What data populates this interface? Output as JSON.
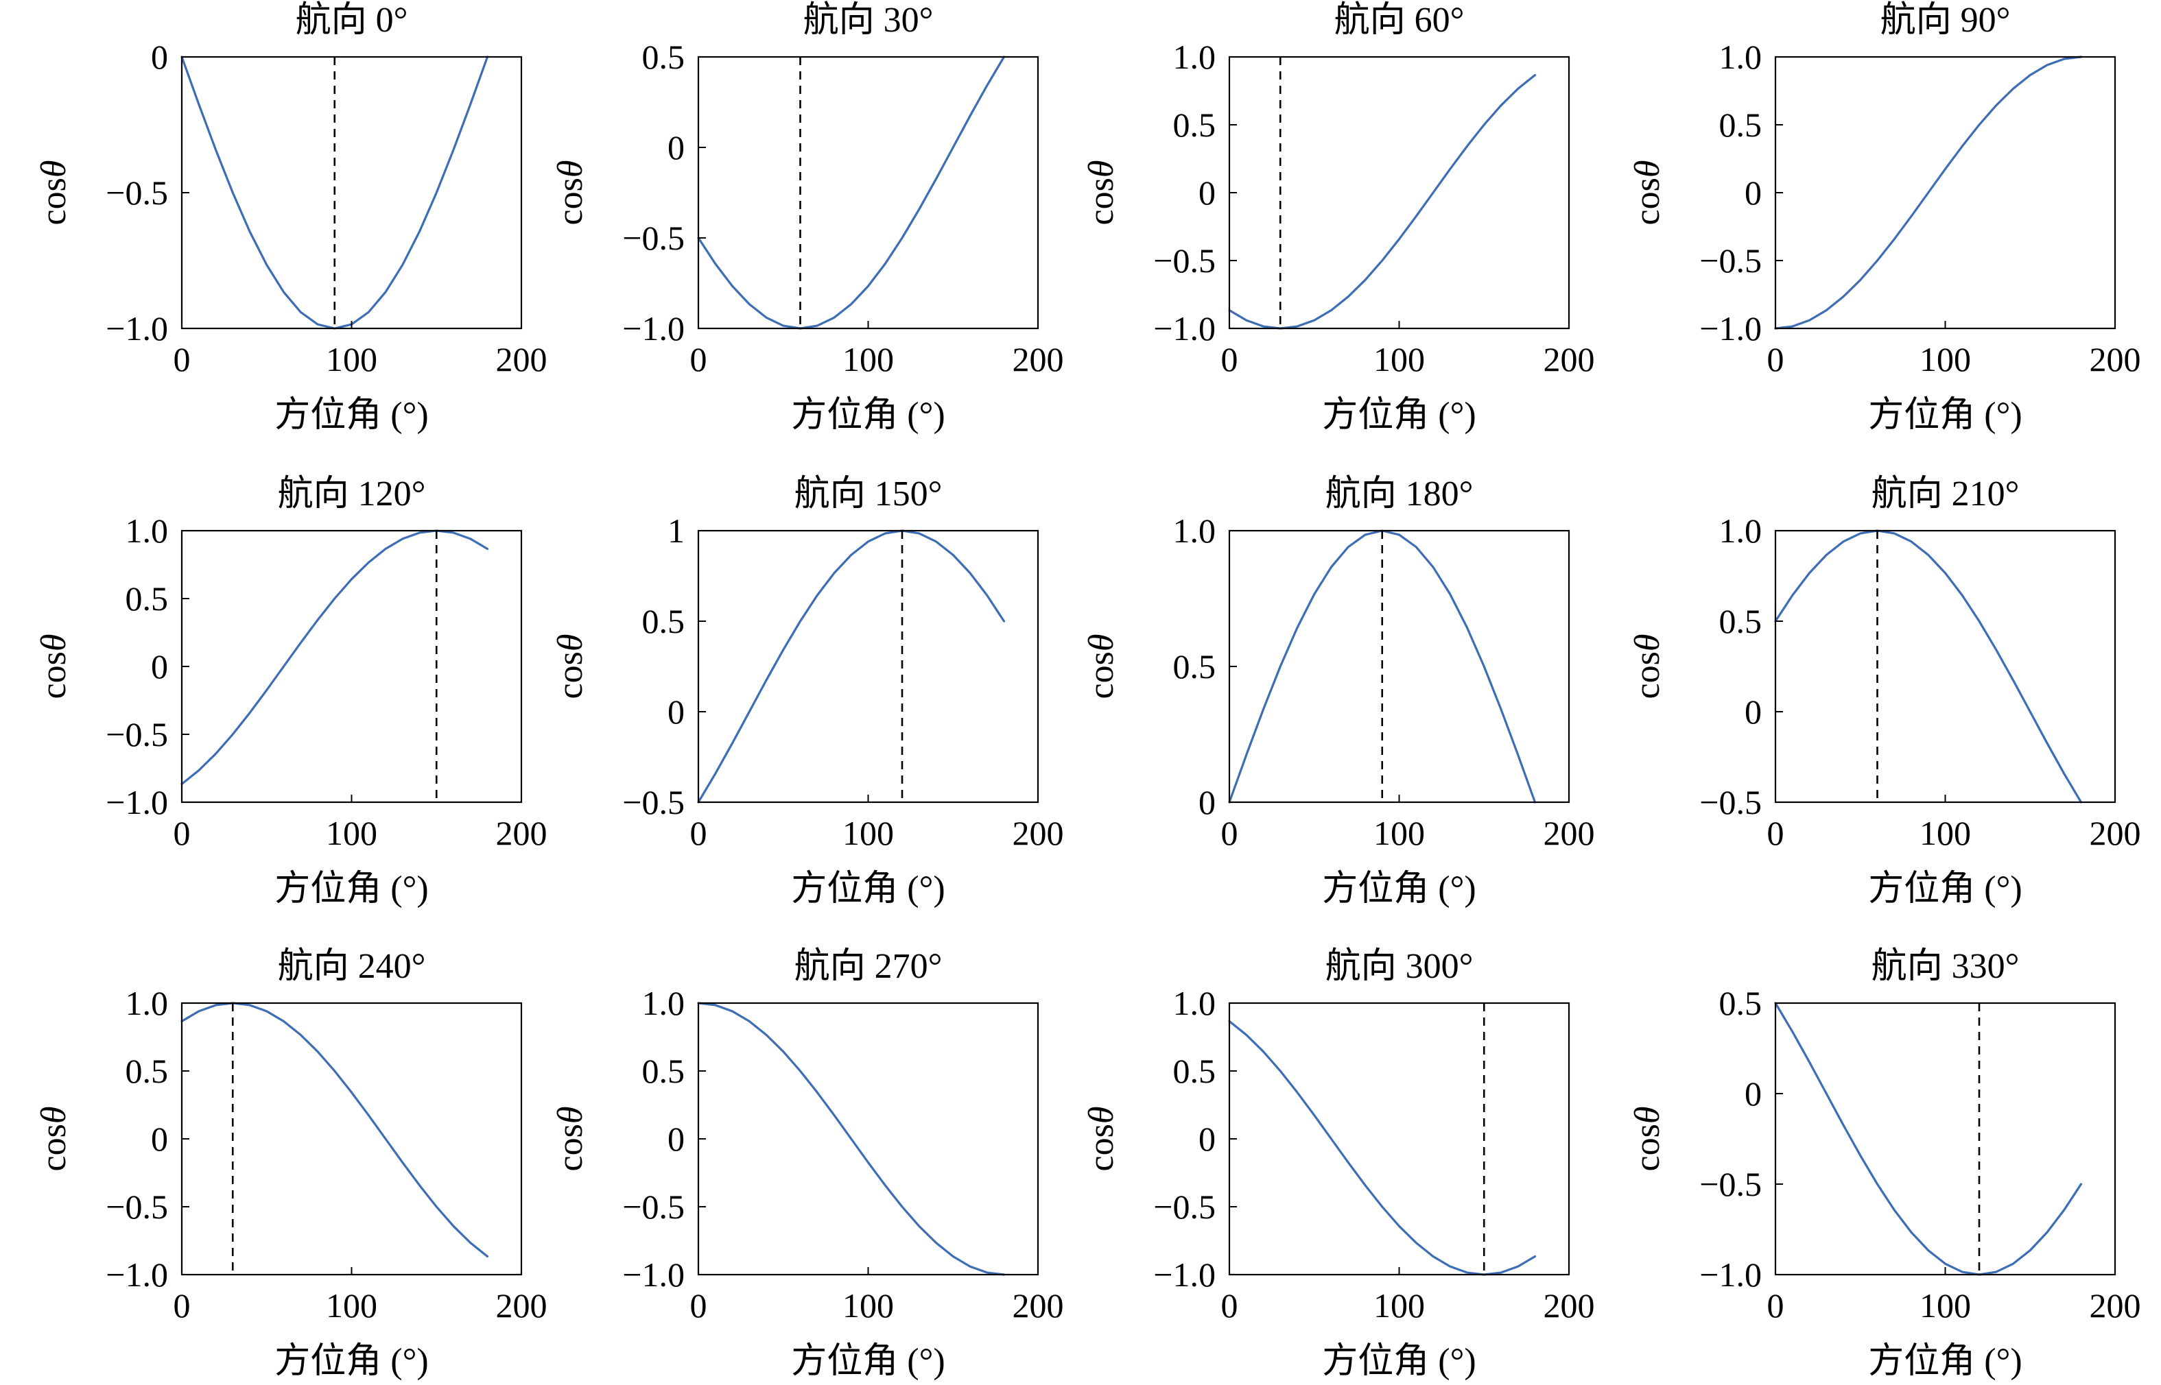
{
  "style": {
    "line_color": "#3d6db5",
    "reference_line_color": "#000000"
  },
  "chart_data": [
    {
      "type": "line",
      "title": "航向 0°",
      "xlabel": "方位角 (°)",
      "ylabel": "cosθ",
      "xlim": [
        0,
        200
      ],
      "xticks": [
        0,
        100,
        200
      ],
      "xtick_labels": [
        "0",
        "100",
        "200"
      ],
      "ylim": [
        -1,
        0
      ],
      "yticks": [
        -1,
        -0.5,
        0
      ],
      "ytick_labels": [
        "−1.0",
        "−0.5",
        "0"
      ],
      "vline": 90,
      "series": [
        {
          "x": [
            0,
            10,
            20,
            30,
            40,
            50,
            60,
            70,
            80,
            90,
            100,
            110,
            120,
            130,
            140,
            150,
            160,
            170,
            180
          ],
          "y": [
            0,
            -0.174,
            -0.342,
            -0.5,
            -0.643,
            -0.766,
            -0.866,
            -0.94,
            -0.985,
            -1,
            -0.985,
            -0.94,
            -0.866,
            -0.766,
            -0.643,
            -0.5,
            -0.342,
            -0.174,
            0
          ]
        }
      ]
    },
    {
      "type": "line",
      "title": "航向 30°",
      "xlabel": "方位角 (°)",
      "ylabel": "cosθ",
      "xlim": [
        0,
        200
      ],
      "xticks": [
        0,
        100,
        200
      ],
      "xtick_labels": [
        "0",
        "100",
        "200"
      ],
      "ylim": [
        -1,
        0.5
      ],
      "yticks": [
        -1,
        -0.5,
        0,
        0.5
      ],
      "ytick_labels": [
        "−1.0",
        "−0.5",
        "0",
        "0.5"
      ],
      "vline": 60,
      "series": [
        {
          "x": [
            0,
            10,
            20,
            30,
            40,
            50,
            60,
            70,
            80,
            90,
            100,
            110,
            120,
            130,
            140,
            150,
            160,
            170,
            180
          ],
          "y": [
            -0.5,
            -0.643,
            -0.766,
            -0.866,
            -0.94,
            -0.985,
            -1,
            -0.985,
            -0.94,
            -0.866,
            -0.766,
            -0.643,
            -0.5,
            -0.342,
            -0.174,
            0,
            0.174,
            0.342,
            0.5
          ]
        }
      ]
    },
    {
      "type": "line",
      "title": "航向 60°",
      "xlabel": "方位角 (°)",
      "ylabel": "cosθ",
      "xlim": [
        0,
        200
      ],
      "xticks": [
        0,
        100,
        200
      ],
      "xtick_labels": [
        "0",
        "100",
        "200"
      ],
      "ylim": [
        -1,
        1
      ],
      "yticks": [
        -1,
        -0.5,
        0,
        0.5,
        1
      ],
      "ytick_labels": [
        "−1.0",
        "−0.5",
        "0",
        "0.5",
        "1.0"
      ],
      "vline": 30,
      "series": [
        {
          "x": [
            0,
            10,
            20,
            30,
            40,
            50,
            60,
            70,
            80,
            90,
            100,
            110,
            120,
            130,
            140,
            150,
            160,
            170,
            180
          ],
          "y": [
            -0.866,
            -0.94,
            -0.985,
            -1,
            -0.985,
            -0.94,
            -0.866,
            -0.766,
            -0.643,
            -0.5,
            -0.342,
            -0.174,
            0,
            0.174,
            0.342,
            0.5,
            0.643,
            0.766,
            0.866
          ]
        }
      ]
    },
    {
      "type": "line",
      "title": "航向 90°",
      "xlabel": "方位角 (°)",
      "ylabel": "cosθ",
      "xlim": [
        0,
        200
      ],
      "xticks": [
        0,
        100,
        200
      ],
      "xtick_labels": [
        "0",
        "100",
        "200"
      ],
      "ylim": [
        -1,
        1
      ],
      "yticks": [
        -1,
        -0.5,
        0,
        0.5,
        1
      ],
      "ytick_labels": [
        "−1.0",
        "−0.5",
        "0",
        "0.5",
        "1.0"
      ],
      "series": [
        {
          "x": [
            0,
            10,
            20,
            30,
            40,
            50,
            60,
            70,
            80,
            90,
            100,
            110,
            120,
            130,
            140,
            150,
            160,
            170,
            180
          ],
          "y": [
            -1,
            -0.985,
            -0.94,
            -0.866,
            -0.766,
            -0.643,
            -0.5,
            -0.342,
            -0.174,
            0,
            0.174,
            0.342,
            0.5,
            0.643,
            0.766,
            0.866,
            0.94,
            0.985,
            1
          ]
        }
      ]
    },
    {
      "type": "line",
      "title": "航向 120°",
      "xlabel": "方位角 (°)",
      "ylabel": "cosθ",
      "xlim": [
        0,
        200
      ],
      "xticks": [
        0,
        100,
        200
      ],
      "xtick_labels": [
        "0",
        "100",
        "200"
      ],
      "ylim": [
        -1,
        1
      ],
      "yticks": [
        -1,
        -0.5,
        0,
        0.5,
        1
      ],
      "ytick_labels": [
        "−1.0",
        "−0.5",
        "0",
        "0.5",
        "1.0"
      ],
      "vline": 150,
      "series": [
        {
          "x": [
            0,
            10,
            20,
            30,
            40,
            50,
            60,
            70,
            80,
            90,
            100,
            110,
            120,
            130,
            140,
            150,
            160,
            170,
            180
          ],
          "y": [
            -0.866,
            -0.766,
            -0.643,
            -0.5,
            -0.342,
            -0.174,
            0,
            0.174,
            0.342,
            0.5,
            0.643,
            0.766,
            0.866,
            0.94,
            0.985,
            1,
            0.985,
            0.94,
            0.866
          ]
        }
      ]
    },
    {
      "type": "line",
      "title": "航向 150°",
      "xlabel": "方位角 (°)",
      "ylabel": "cosθ",
      "xlim": [
        0,
        200
      ],
      "xticks": [
        0,
        100,
        200
      ],
      "xtick_labels": [
        "0",
        "100",
        "200"
      ],
      "ylim": [
        -0.5,
        1
      ],
      "yticks": [
        -0.5,
        0,
        0.5,
        1
      ],
      "ytick_labels": [
        "−0.5",
        "0",
        "0.5",
        "1"
      ],
      "vline": 120,
      "series": [
        {
          "x": [
            0,
            10,
            20,
            30,
            40,
            50,
            60,
            70,
            80,
            90,
            100,
            110,
            120,
            130,
            140,
            150,
            160,
            170,
            180
          ],
          "y": [
            -0.5,
            -0.342,
            -0.174,
            0,
            0.174,
            0.342,
            0.5,
            0.643,
            0.766,
            0.866,
            0.94,
            0.985,
            1,
            0.985,
            0.94,
            0.866,
            0.766,
            0.643,
            0.5
          ]
        }
      ]
    },
    {
      "type": "line",
      "title": "航向 180°",
      "xlabel": "方位角 (°)",
      "ylabel": "cosθ",
      "xlim": [
        0,
        200
      ],
      "xticks": [
        0,
        100,
        200
      ],
      "xtick_labels": [
        "0",
        "100",
        "200"
      ],
      "ylim": [
        0,
        1
      ],
      "yticks": [
        0,
        0.5,
        1
      ],
      "ytick_labels": [
        "0",
        "0.5",
        "1.0"
      ],
      "vline": 90,
      "series": [
        {
          "x": [
            0,
            10,
            20,
            30,
            40,
            50,
            60,
            70,
            80,
            90,
            100,
            110,
            120,
            130,
            140,
            150,
            160,
            170,
            180
          ],
          "y": [
            0,
            0.174,
            0.342,
            0.5,
            0.643,
            0.766,
            0.866,
            0.94,
            0.985,
            1,
            0.985,
            0.94,
            0.866,
            0.766,
            0.643,
            0.5,
            0.342,
            0.174,
            0
          ]
        }
      ]
    },
    {
      "type": "line",
      "title": "航向 210°",
      "xlabel": "方位角 (°)",
      "ylabel": "cosθ",
      "xlim": [
        0,
        200
      ],
      "xticks": [
        0,
        100,
        200
      ],
      "xtick_labels": [
        "0",
        "100",
        "200"
      ],
      "ylim": [
        -0.5,
        1
      ],
      "yticks": [
        -0.5,
        0,
        0.5,
        1
      ],
      "ytick_labels": [
        "−0.5",
        "0",
        "0.5",
        "1.0"
      ],
      "vline": 60,
      "series": [
        {
          "x": [
            0,
            10,
            20,
            30,
            40,
            50,
            60,
            70,
            80,
            90,
            100,
            110,
            120,
            130,
            140,
            150,
            160,
            170,
            180
          ],
          "y": [
            0.5,
            0.643,
            0.766,
            0.866,
            0.94,
            0.985,
            1,
            0.985,
            0.94,
            0.866,
            0.766,
            0.643,
            0.5,
            0.342,
            0.174,
            0,
            -0.174,
            -0.342,
            -0.5
          ]
        }
      ]
    },
    {
      "type": "line",
      "title": "航向 240°",
      "xlabel": "方位角 (°)",
      "ylabel": "cosθ",
      "xlim": [
        0,
        200
      ],
      "xticks": [
        0,
        100,
        200
      ],
      "xtick_labels": [
        "0",
        "100",
        "200"
      ],
      "ylim": [
        -1,
        1
      ],
      "yticks": [
        -1,
        -0.5,
        0,
        0.5,
        1
      ],
      "ytick_labels": [
        "−1.0",
        "−0.5",
        "0",
        "0.5",
        "1.0"
      ],
      "vline": 30,
      "series": [
        {
          "x": [
            0,
            10,
            20,
            30,
            40,
            50,
            60,
            70,
            80,
            90,
            100,
            110,
            120,
            130,
            140,
            150,
            160,
            170,
            180
          ],
          "y": [
            0.866,
            0.94,
            0.985,
            1,
            0.985,
            0.94,
            0.866,
            0.766,
            0.643,
            0.5,
            0.342,
            0.174,
            0,
            -0.174,
            -0.342,
            -0.5,
            -0.643,
            -0.766,
            -0.866
          ]
        }
      ]
    },
    {
      "type": "line",
      "title": "航向 270°",
      "xlabel": "方位角 (°)",
      "ylabel": "cosθ",
      "xlim": [
        0,
        200
      ],
      "xticks": [
        0,
        100,
        200
      ],
      "xtick_labels": [
        "0",
        "100",
        "200"
      ],
      "ylim": [
        -1,
        1
      ],
      "yticks": [
        -1,
        -0.5,
        0,
        0.5,
        1
      ],
      "ytick_labels": [
        "−1.0",
        "−0.5",
        "0",
        "0.5",
        "1.0"
      ],
      "series": [
        {
          "x": [
            0,
            10,
            20,
            30,
            40,
            50,
            60,
            70,
            80,
            90,
            100,
            110,
            120,
            130,
            140,
            150,
            160,
            170,
            180
          ],
          "y": [
            1,
            0.985,
            0.94,
            0.866,
            0.766,
            0.643,
            0.5,
            0.342,
            0.174,
            0,
            -0.174,
            -0.342,
            -0.5,
            -0.643,
            -0.766,
            -0.866,
            -0.94,
            -0.985,
            -1
          ]
        }
      ]
    },
    {
      "type": "line",
      "title": "航向 300°",
      "xlabel": "方位角 (°)",
      "ylabel": "cosθ",
      "xlim": [
        0,
        200
      ],
      "xticks": [
        0,
        100,
        200
      ],
      "xtick_labels": [
        "0",
        "100",
        "200"
      ],
      "ylim": [
        -1,
        1
      ],
      "yticks": [
        -1,
        -0.5,
        0,
        0.5,
        1
      ],
      "ytick_labels": [
        "−1.0",
        "−0.5",
        "0",
        "0.5",
        "1.0"
      ],
      "vline": 150,
      "series": [
        {
          "x": [
            0,
            10,
            20,
            30,
            40,
            50,
            60,
            70,
            80,
            90,
            100,
            110,
            120,
            130,
            140,
            150,
            160,
            170,
            180
          ],
          "y": [
            0.866,
            0.766,
            0.643,
            0.5,
            0.342,
            0.174,
            0,
            -0.174,
            -0.342,
            -0.5,
            -0.643,
            -0.766,
            -0.866,
            -0.94,
            -0.985,
            -1,
            -0.985,
            -0.94,
            -0.866
          ]
        }
      ]
    },
    {
      "type": "line",
      "title": "航向 330°",
      "xlabel": "方位角 (°)",
      "ylabel": "cosθ",
      "xlim": [
        0,
        200
      ],
      "xticks": [
        0,
        100,
        200
      ],
      "xtick_labels": [
        "0",
        "100",
        "200"
      ],
      "ylim": [
        -1,
        0.5
      ],
      "yticks": [
        -1,
        -0.5,
        0,
        0.5
      ],
      "ytick_labels": [
        "−1.0",
        "−0.5",
        "0",
        "0.5"
      ],
      "vline": 120,
      "series": [
        {
          "x": [
            0,
            10,
            20,
            30,
            40,
            50,
            60,
            70,
            80,
            90,
            100,
            110,
            120,
            130,
            140,
            150,
            160,
            170,
            180
          ],
          "y": [
            0.5,
            0.342,
            0.174,
            0,
            -0.174,
            -0.342,
            -0.5,
            -0.643,
            -0.766,
            -0.866,
            -0.94,
            -0.985,
            -1,
            -0.985,
            -0.94,
            -0.866,
            -0.766,
            -0.643,
            -0.5
          ]
        }
      ]
    }
  ]
}
